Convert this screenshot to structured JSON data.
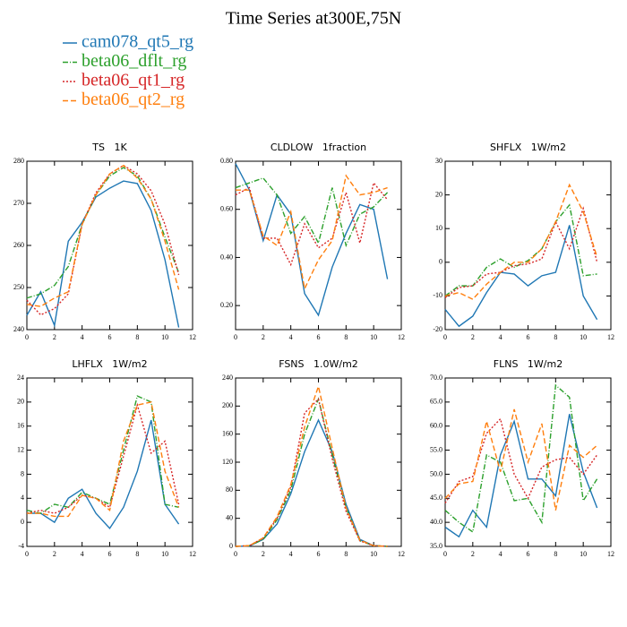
{
  "title": "Time Series at300E,75N",
  "legend": [
    {
      "name": "cam078_qt5_rg",
      "color": "#1f77b4",
      "dash": "solid"
    },
    {
      "name": "beta06_dflt_rg",
      "color": "#2ca02c",
      "dash": "dashdot"
    },
    {
      "name": "beta06_qt1_rg",
      "color": "#d62728",
      "dash": "dotted"
    },
    {
      "name": "beta06_qt2_rg",
      "color": "#ff7f0e",
      "dash": "dashed"
    }
  ],
  "chart_data": [
    {
      "type": "line",
      "title": "TS   1K",
      "x": [
        0,
        1,
        2,
        3,
        4,
        5,
        6,
        7,
        8,
        9,
        10,
        11
      ],
      "xlim": [
        0,
        12
      ],
      "xticks": [
        0,
        2,
        4,
        6,
        8,
        10,
        12
      ],
      "ylim": [
        240,
        280
      ],
      "yticks": [
        240,
        250,
        260,
        270,
        280
      ],
      "series": [
        {
          "values": [
            243.4,
            249,
            241,
            261,
            265.5,
            271.5,
            273.6,
            275.3,
            274.7,
            268.3,
            256.6,
            240.5
          ]
        },
        {
          "values": [
            247.5,
            248.5,
            250.5,
            255,
            265,
            272,
            276.5,
            278.5,
            276.5,
            271,
            262,
            253.5
          ]
        },
        {
          "values": [
            247,
            243.5,
            245,
            248.5,
            265,
            272.5,
            277,
            279,
            277,
            273,
            265,
            253
          ]
        },
        {
          "values": [
            246,
            245.5,
            247.5,
            249,
            265,
            272,
            277,
            279,
            276,
            271,
            261,
            249.5
          ]
        }
      ]
    },
    {
      "type": "line",
      "title": "CLDLOW   1fraction",
      "x": [
        0,
        1,
        2,
        3,
        4,
        5,
        6,
        7,
        8,
        9,
        10,
        11
      ],
      "xlim": [
        0,
        12
      ],
      "xticks": [
        0,
        2,
        4,
        6,
        8,
        10,
        12
      ],
      "ylim": [
        0.1,
        0.8
      ],
      "yticks": [
        {
          "value": 0.2,
          "label": "0.20"
        },
        {
          "value": 0.4,
          "label": "0.40"
        },
        {
          "value": 0.6,
          "label": "0.60"
        },
        {
          "value": 0.8,
          "label": "0.80"
        }
      ],
      "series": [
        {
          "values": [
            0.79,
            0.68,
            0.47,
            0.66,
            0.58,
            0.25,
            0.16,
            0.36,
            0.5,
            0.62,
            0.6,
            0.31
          ]
        },
        {
          "values": [
            0.69,
            0.71,
            0.73,
            0.66,
            0.5,
            0.57,
            0.46,
            0.69,
            0.45,
            0.58,
            0.61,
            0.67
          ]
        },
        {
          "values": [
            0.66,
            0.69,
            0.48,
            0.48,
            0.37,
            0.54,
            0.44,
            0.48,
            0.67,
            0.46,
            0.71,
            0.64
          ]
        },
        {
          "values": [
            0.68,
            0.68,
            0.49,
            0.45,
            0.59,
            0.27,
            0.39,
            0.47,
            0.74,
            0.66,
            0.67,
            0.69
          ]
        }
      ]
    },
    {
      "type": "line",
      "title": "SHFLX   1W/m2",
      "x": [
        0,
        1,
        2,
        3,
        4,
        5,
        6,
        7,
        8,
        9,
        10,
        11
      ],
      "xlim": [
        0,
        12
      ],
      "xticks": [
        0,
        2,
        4,
        6,
        8,
        10,
        12
      ],
      "ylim": [
        -20,
        30
      ],
      "yticks": [
        -20,
        -10,
        0,
        10,
        20,
        30
      ],
      "series": [
        {
          "values": [
            -14,
            -19,
            -16,
            -9,
            -3,
            -3.5,
            -7,
            -4,
            -3,
            11,
            -10,
            -17
          ]
        },
        {
          "values": [
            -10,
            -7,
            -7,
            -1.5,
            1,
            -1.5,
            0.5,
            4,
            12,
            17,
            -4,
            -3.5
          ]
        },
        {
          "values": [
            -10.5,
            -7.5,
            -7,
            -3.5,
            -3,
            -1,
            -0.5,
            1,
            12,
            4,
            16,
            0
          ]
        },
        {
          "values": [
            -10,
            -9,
            -11,
            -6.5,
            -3,
            0,
            0,
            4,
            12,
            23,
            15,
            1.5
          ]
        }
      ]
    },
    {
      "type": "line",
      "title": "LHFLX   1W/m2",
      "x": [
        0,
        1,
        2,
        3,
        4,
        5,
        6,
        7,
        8,
        9,
        10,
        11
      ],
      "xlim": [
        0,
        12
      ],
      "xticks": [
        0,
        2,
        4,
        6,
        8,
        10,
        12
      ],
      "ylim": [
        -4,
        24
      ],
      "yticks": [
        -4,
        0,
        4,
        8,
        12,
        16,
        20,
        24
      ],
      "series": [
        {
          "values": [
            1.5,
            1.5,
            0,
            4,
            5.5,
            1.5,
            -1,
            2.5,
            8.5,
            17,
            3,
            -0.3
          ]
        },
        {
          "values": [
            2,
            1.5,
            3,
            2.5,
            5,
            4,
            3,
            12,
            21,
            20,
            3,
            2.5
          ]
        },
        {
          "values": [
            1.5,
            2,
            1.5,
            2.5,
            4.5,
            4,
            2.5,
            11,
            19.5,
            11.5,
            13.5,
            3
          ]
        },
        {
          "values": [
            1.5,
            1.5,
            1,
            1,
            4.5,
            4,
            2,
            13.5,
            19.5,
            20,
            8.5,
            2.5
          ]
        }
      ]
    },
    {
      "type": "line",
      "title": "FSNS   1.0W/m2",
      "x": [
        0,
        1,
        2,
        3,
        4,
        5,
        6,
        7,
        8,
        9,
        10,
        11
      ],
      "xlim": [
        0,
        12
      ],
      "xticks": [
        0,
        2,
        4,
        6,
        8,
        10,
        12
      ],
      "ylim": [
        0,
        240
      ],
      "yticks": [
        0,
        40,
        80,
        120,
        160,
        200,
        240
      ],
      "series": [
        {
          "values": [
            0,
            0.5,
            10,
            32,
            75,
            135,
            180,
            135,
            60,
            10,
            1,
            0
          ]
        },
        {
          "values": [
            0,
            1,
            10,
            38,
            80,
            160,
            210,
            130,
            55,
            8,
            1,
            0
          ]
        },
        {
          "values": [
            0,
            1,
            12,
            40,
            85,
            190,
            210,
            125,
            50,
            8,
            1,
            0
          ]
        },
        {
          "values": [
            0,
            1,
            12,
            42,
            88,
            170,
            228,
            140,
            55,
            9,
            1,
            0
          ]
        }
      ]
    },
    {
      "type": "line",
      "title": "FLNS   1W/m2",
      "x": [
        0,
        1,
        2,
        3,
        4,
        5,
        6,
        7,
        8,
        9,
        10,
        11
      ],
      "xlim": [
        0,
        12
      ],
      "xticks": [
        0,
        2,
        4,
        6,
        8,
        10,
        12
      ],
      "ylim": [
        35,
        70
      ],
      "yticks": [
        {
          "value": 35,
          "label": "35.0"
        },
        {
          "value": 40,
          "label": "40.0"
        },
        {
          "value": 45,
          "label": "45.0"
        },
        {
          "value": 50,
          "label": "50.0"
        },
        {
          "value": 55,
          "label": "55.0"
        },
        {
          "value": 60,
          "label": "60.0"
        },
        {
          "value": 65,
          "label": "65.0"
        },
        {
          "value": 70,
          "label": "70.0"
        }
      ],
      "series": [
        {
          "values": [
            39,
            37,
            42.5,
            39,
            54,
            61,
            49,
            49,
            45.5,
            62.5,
            50.5,
            43
          ]
        },
        {
          "values": [
            42.5,
            40,
            38,
            54,
            52.5,
            44.5,
            45,
            40,
            68.5,
            66,
            44.5,
            49
          ]
        },
        {
          "values": [
            44,
            48.5,
            49.5,
            58.5,
            61.5,
            50,
            45,
            51.5,
            53,
            53.5,
            50,
            54
          ]
        },
        {
          "values": [
            45,
            48,
            48.5,
            61,
            50.5,
            63.5,
            52.5,
            60.5,
            42.5,
            56,
            53.5,
            56
          ]
        }
      ]
    }
  ]
}
